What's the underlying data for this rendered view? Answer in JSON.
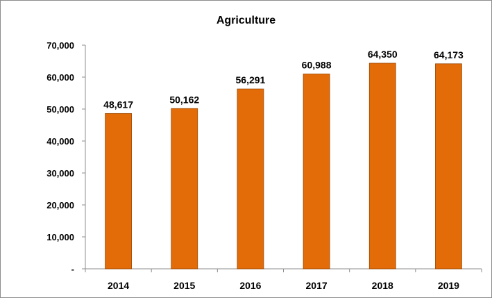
{
  "chart_data": {
    "type": "bar",
    "title": "Agriculture",
    "xlabel": "",
    "ylabel": "",
    "categories": [
      "2014",
      "2015",
      "2016",
      "2017",
      "2018",
      "2019"
    ],
    "values": [
      48617,
      50162,
      56291,
      60988,
      64350,
      64173
    ],
    "data_labels": [
      "48,617",
      "50,162",
      "56,291",
      "60,988",
      "64,350",
      "64,173"
    ],
    "ylim": [
      0,
      70000
    ],
    "yticks": [
      0,
      10000,
      20000,
      30000,
      40000,
      50000,
      60000,
      70000
    ],
    "ytick_labels": [
      "-",
      "10,000",
      "20,000",
      "30,000",
      "40,000",
      "50,000",
      "60,000",
      "70,000"
    ],
    "grid": false,
    "legend": "none",
    "bar_color": "#E36C09",
    "bar_edge_color": "#9A4A06"
  }
}
